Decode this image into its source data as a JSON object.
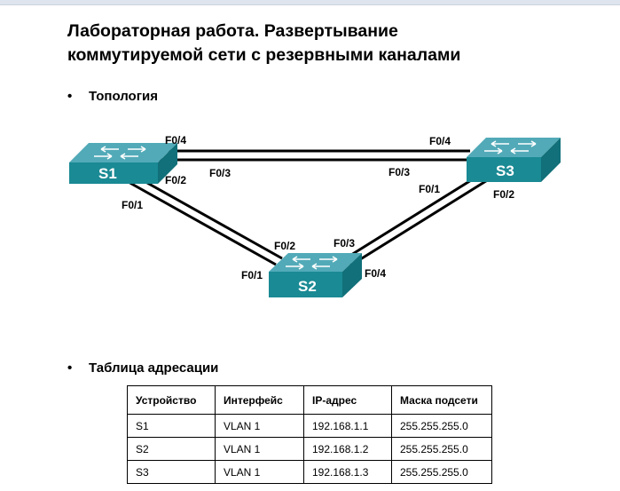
{
  "title_line1": "Лабораторная работа. Развертывание",
  "title_line2": "коммутируемой  сети с резервными каналами",
  "bullet_char": "•",
  "topology_heading": "Топология",
  "table_heading": "Таблица адресации",
  "switches": {
    "s1": "S1",
    "s2": "S2",
    "s3": "S3"
  },
  "ports": {
    "s1_f04": "F0/4",
    "s1_f03": "F0/3",
    "s1_f02": "F0/2",
    "s1_f01": "F0/1",
    "s3_f04": "F0/4",
    "s3_f03": "F0/3",
    "s3_f01": "F0/1",
    "s3_f02": "F0/2",
    "s2_f02": "F0/2",
    "s2_f01": "F0/1",
    "s2_f03": "F0/3",
    "s2_f04": "F0/4"
  },
  "switch_colors": {
    "top": "#52aab8",
    "front": "#1a8a94",
    "side": "#117079"
  },
  "table": {
    "headers": [
      "Устройство",
      "Интерфейс",
      "IP-адрес",
      "Маска подсети"
    ],
    "rows": [
      [
        "S1",
        "VLAN 1",
        "192.168.1.1",
        "255.255.255.0"
      ],
      [
        "S2",
        "VLAN 1",
        "192.168.1.2",
        "255.255.255.0"
      ],
      [
        "S3",
        "VLAN 1",
        "192.168.1.3",
        "255.255.255.0"
      ]
    ]
  }
}
